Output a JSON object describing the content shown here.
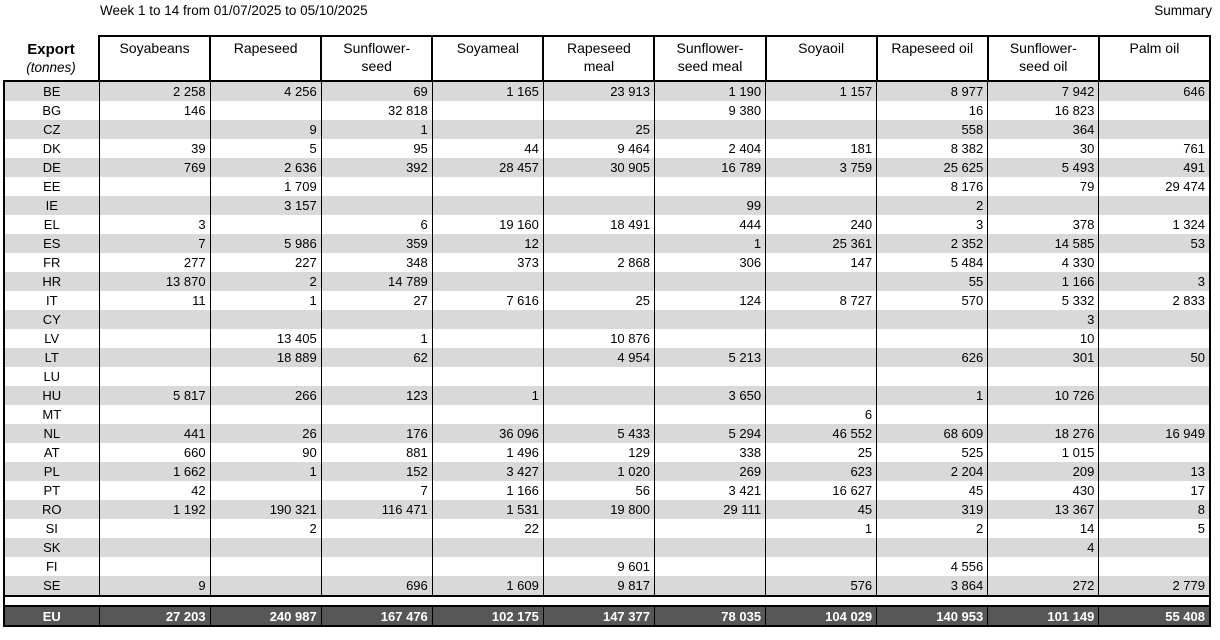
{
  "header": {
    "title": "Week 1 to 14 from 01/07/2025 to 05/10/2025",
    "summary_label": "Summary"
  },
  "colors": {
    "stripe": "#d9d9d9",
    "total_row_bg": "#575757",
    "border": "#000000"
  },
  "table": {
    "corner": {
      "line1": "Export",
      "line2": "(tonnes)"
    },
    "columns": [
      "Soyabeans",
      "Rapeseed",
      "Sunflower-\nseed",
      "Soyameal",
      "Rapeseed\nmeal",
      "Sunflower-\nseed meal",
      "Soyaoil",
      "Rapeseed oil",
      "Sunflower-\nseed oil",
      "Palm oil"
    ],
    "rows": [
      {
        "country": "BE",
        "values": [
          "2 258",
          "4 256",
          "69",
          "1 165",
          "23 913",
          "1 190",
          "1 157",
          "8 977",
          "7 942",
          "646"
        ]
      },
      {
        "country": "BG",
        "values": [
          "146",
          "",
          "32 818",
          "",
          "",
          "9 380",
          "",
          "16",
          "16 823",
          ""
        ]
      },
      {
        "country": "CZ",
        "values": [
          "",
          "9",
          "1",
          "",
          "25",
          "",
          "",
          "558",
          "364",
          ""
        ]
      },
      {
        "country": "DK",
        "values": [
          "39",
          "5",
          "95",
          "44",
          "9 464",
          "2 404",
          "181",
          "8 382",
          "30",
          "761"
        ]
      },
      {
        "country": "DE",
        "values": [
          "769",
          "2 636",
          "392",
          "28 457",
          "30 905",
          "16 789",
          "3 759",
          "25 625",
          "5 493",
          "491"
        ]
      },
      {
        "country": "EE",
        "values": [
          "",
          "1 709",
          "",
          "",
          "",
          "",
          "",
          "8 176",
          "79",
          "29 474"
        ]
      },
      {
        "country": "IE",
        "values": [
          "",
          "3 157",
          "",
          "",
          "",
          "99",
          "",
          "2",
          "",
          ""
        ]
      },
      {
        "country": "EL",
        "values": [
          "3",
          "",
          "6",
          "19 160",
          "18 491",
          "444",
          "240",
          "3",
          "378",
          "1 324"
        ]
      },
      {
        "country": "ES",
        "values": [
          "7",
          "5 986",
          "359",
          "12",
          "",
          "1",
          "25 361",
          "2 352",
          "14 585",
          "53"
        ]
      },
      {
        "country": "FR",
        "values": [
          "277",
          "227",
          "348",
          "373",
          "2 868",
          "306",
          "147",
          "5 484",
          "4 330",
          ""
        ]
      },
      {
        "country": "HR",
        "values": [
          "13 870",
          "2",
          "14 789",
          "",
          "",
          "",
          "",
          "55",
          "1 166",
          "3"
        ]
      },
      {
        "country": "IT",
        "values": [
          "11",
          "1",
          "27",
          "7 616",
          "25",
          "124",
          "8 727",
          "570",
          "5 332",
          "2 833"
        ]
      },
      {
        "country": "CY",
        "values": [
          "",
          "",
          "",
          "",
          "",
          "",
          "",
          "",
          "3",
          ""
        ]
      },
      {
        "country": "LV",
        "values": [
          "",
          "13 405",
          "1",
          "",
          "10 876",
          "",
          "",
          "",
          "10",
          ""
        ]
      },
      {
        "country": "LT",
        "values": [
          "",
          "18 889",
          "62",
          "",
          "4 954",
          "5 213",
          "",
          "626",
          "301",
          "50"
        ]
      },
      {
        "country": "LU",
        "values": [
          "",
          "",
          "",
          "",
          "",
          "",
          "",
          "",
          "",
          ""
        ]
      },
      {
        "country": "HU",
        "values": [
          "5 817",
          "266",
          "123",
          "1",
          "",
          "3 650",
          "",
          "1",
          "10 726",
          ""
        ]
      },
      {
        "country": "MT",
        "values": [
          "",
          "",
          "",
          "",
          "",
          "",
          "6",
          "",
          "",
          ""
        ]
      },
      {
        "country": "NL",
        "values": [
          "441",
          "26",
          "176",
          "36 096",
          "5 433",
          "5 294",
          "46 552",
          "68 609",
          "18 276",
          "16 949"
        ]
      },
      {
        "country": "AT",
        "values": [
          "660",
          "90",
          "881",
          "1 496",
          "129",
          "338",
          "25",
          "525",
          "1 015",
          ""
        ]
      },
      {
        "country": "PL",
        "values": [
          "1 662",
          "1",
          "152",
          "3 427",
          "1 020",
          "269",
          "623",
          "2 204",
          "209",
          "13"
        ]
      },
      {
        "country": "PT",
        "values": [
          "42",
          "",
          "7",
          "1 166",
          "56",
          "3 421",
          "16 627",
          "45",
          "430",
          "17"
        ]
      },
      {
        "country": "RO",
        "values": [
          "1 192",
          "190 321",
          "116 471",
          "1 531",
          "19 800",
          "29 111",
          "45",
          "319",
          "13 367",
          "8"
        ]
      },
      {
        "country": "SI",
        "values": [
          "",
          "2",
          "",
          "22",
          "",
          "",
          "1",
          "2",
          "14",
          "5"
        ]
      },
      {
        "country": "SK",
        "values": [
          "",
          "",
          "",
          "",
          "",
          "",
          "",
          "",
          "4",
          ""
        ]
      },
      {
        "country": "FI",
        "values": [
          "",
          "",
          "",
          "",
          "9 601",
          "",
          "",
          "4 556",
          "",
          ""
        ]
      },
      {
        "country": "SE",
        "values": [
          "9",
          "",
          "696",
          "1 609",
          "9 817",
          "",
          "576",
          "3 864",
          "272",
          "2 779"
        ]
      }
    ],
    "total": {
      "label": "EU",
      "values": [
        "27 203",
        "240 987",
        "167 476",
        "102 175",
        "147 377",
        "78 035",
        "104 029",
        "140 953",
        "101 149",
        "55 408"
      ]
    }
  }
}
